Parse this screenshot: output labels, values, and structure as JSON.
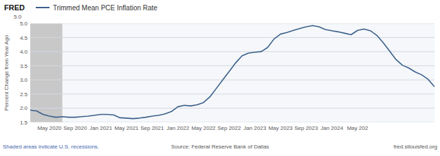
{
  "chart_data": {
    "type": "line",
    "ylabel": "Percent Change from Year Ago",
    "categories": [
      null,
      null,
      null,
      "May 2020",
      null,
      null,
      null,
      "Sep 2020",
      null,
      null,
      null,
      "Jan 2021",
      null,
      null,
      null,
      "May 2021",
      null,
      null,
      null,
      "Sep 2021",
      null,
      null,
      null,
      "Jan 2022",
      null,
      null,
      null,
      "May 2022",
      null,
      null,
      null,
      "Sep 2022",
      null,
      null,
      null,
      "Jan 2023",
      null,
      null,
      null,
      "May 2023",
      null,
      null,
      null,
      "Sep 2023",
      null,
      null,
      null,
      "Jan 2024",
      null,
      null,
      null,
      "May 202",
      null,
      null,
      null,
      null,
      null,
      null,
      null,
      null,
      null,
      null,
      null,
      null
    ],
    "series": [
      {
        "name": "Trimmed Mean PCE Inflation Rate",
        "color": "#3a5f8a",
        "values": [
          1.93,
          1.9,
          1.78,
          1.72,
          1.68,
          1.7,
          1.68,
          1.68,
          1.7,
          1.72,
          1.75,
          1.78,
          1.78,
          1.76,
          1.66,
          1.65,
          1.63,
          1.65,
          1.68,
          1.72,
          1.75,
          1.8,
          1.88,
          2.05,
          2.1,
          2.08,
          2.12,
          2.2,
          2.4,
          2.7,
          3.0,
          3.3,
          3.6,
          3.85,
          3.95,
          3.98,
          4.0,
          4.15,
          4.45,
          4.62,
          4.68,
          4.75,
          4.82,
          4.88,
          4.92,
          4.88,
          4.78,
          4.74,
          4.7,
          4.65,
          4.6,
          4.75,
          4.8,
          4.74,
          4.58,
          4.32,
          4.02,
          3.72,
          3.52,
          3.42,
          3.28,
          3.18,
          3.02,
          2.76
        ]
      }
    ],
    "ylim": [
      1.5,
      5.0
    ],
    "yticks": [
      1.5,
      {
        "value": 2.0,
        "label": "2.0"
      },
      2.5,
      {
        "value": 3.0,
        "label": "3.0"
      },
      3.5,
      {
        "value": 4.0,
        "label": "4.0"
      },
      4.5,
      {
        "value": 5.0,
        "label": "5.0"
      }
    ],
    "grid": true,
    "legend": "top-left",
    "recession": {
      "start": 0,
      "end": 5,
      "color": "#c8c8c8"
    },
    "annotations": [
      "FRED",
      "5.0",
      "Shaded areas indicate U.S. recessions.",
      "Source: Federal Reserve Bank of Dallas",
      "fred.stlouisfed.org"
    ]
  }
}
